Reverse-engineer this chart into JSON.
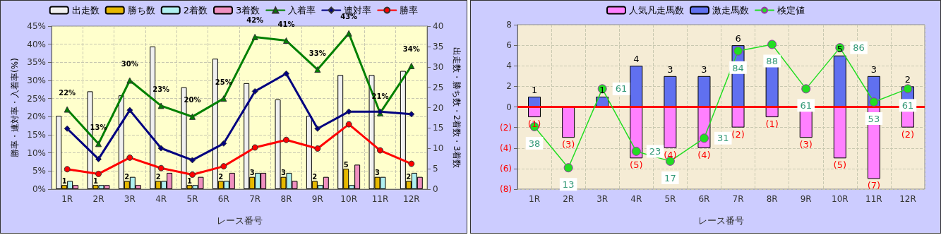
{
  "chart_data": [
    {
      "type": "bar",
      "xlabel": "レース番号",
      "ylabel": "勝率・連対率・入着率(%)",
      "y2label": "出走数・勝ち数・2着数・3着数",
      "categories": [
        "1R",
        "2R",
        "3R",
        "4R",
        "5R",
        "6R",
        "7R",
        "8R",
        "9R",
        "10R",
        "11R",
        "12R"
      ],
      "ylim": [
        0,
        45
      ],
      "yticks": [
        {
          "value": 0,
          "label": "0%"
        },
        {
          "value": 5,
          "label": "5%"
        },
        {
          "value": 10,
          "label": "10%"
        },
        {
          "value": 15,
          "label": "15%"
        },
        {
          "value": 20,
          "label": "20%"
        },
        {
          "value": 25,
          "label": "25%"
        },
        {
          "value": 30,
          "label": "30%"
        },
        {
          "value": 35,
          "label": "35%"
        },
        {
          "value": 40,
          "label": "40%"
        },
        {
          "value": 45,
          "label": "45%"
        }
      ],
      "y2lim": [
        0,
        40
      ],
      "y2ticks": [
        0,
        5,
        10,
        15,
        20,
        25,
        30,
        35,
        40
      ],
      "grid": true,
      "legend": "top",
      "series": [
        {
          "name": "出走数",
          "color": "#f0f0f0",
          "axis": "y2",
          "values": [
            18,
            24,
            23,
            35,
            25,
            32,
            26,
            22,
            18,
            28,
            28,
            29
          ]
        },
        {
          "name": "勝ち数",
          "color": "#e6b800",
          "axis": "y2",
          "values": [
            1,
            1,
            2,
            2,
            1,
            2,
            3,
            3,
            2,
            5,
            3,
            2
          ],
          "value_labels": [
            "1",
            "1",
            "2",
            "2",
            "1",
            "2",
            "3",
            "3",
            "2",
            "5",
            "3",
            "2"
          ]
        },
        {
          "name": "2着数",
          "color": "#b0f0f0",
          "axis": "y2",
          "values": [
            2,
            1,
            3,
            2,
            1,
            2,
            4,
            4,
            1,
            1,
            3,
            4
          ]
        },
        {
          "name": "3着数",
          "color": "#f090c0",
          "axis": "y2",
          "values": [
            1,
            1,
            1,
            4,
            3,
            4,
            4,
            2,
            3,
            6,
            0,
            3
          ]
        },
        {
          "name": "入着率",
          "type": "line",
          "color": "#008000",
          "marker": "triangle",
          "values": [
            22,
            12.5,
            30,
            23,
            20,
            25,
            42,
            41,
            33,
            43,
            21,
            34
          ],
          "value_labels": [
            "22%",
            "13%",
            "30%",
            "23%",
            "20%",
            "25%",
            "42%",
            "41%",
            "33%",
            "43%",
            "21%",
            "34%"
          ]
        },
        {
          "name": "連対率",
          "type": "line",
          "color": "#000080",
          "marker": "diamond",
          "values": [
            16.7,
            8.3,
            21.8,
            11.3,
            8,
            12.6,
            27,
            31.9,
            16.7,
            21.4,
            21.4,
            20.7
          ]
        },
        {
          "name": "勝率",
          "type": "line",
          "color": "#ff0000",
          "marker": "circle",
          "values": [
            5.5,
            4.2,
            8.7,
            5.8,
            4,
            6.3,
            11.5,
            13.6,
            11.2,
            17.9,
            10.7,
            7
          ]
        }
      ]
    },
    {
      "type": "bar",
      "xlabel": "レース番号",
      "categories": [
        "1R",
        "2R",
        "3R",
        "4R",
        "5R",
        "6R",
        "7R",
        "8R",
        "9R",
        "10R",
        "11R",
        "12R"
      ],
      "ylim": [
        -8,
        8
      ],
      "yticks": [
        {
          "value": -8,
          "label": "(8)"
        },
        {
          "value": -6,
          "label": "(6)"
        },
        {
          "value": -4,
          "label": "(4)"
        },
        {
          "value": -2,
          "label": "(2)"
        },
        0,
        2,
        4,
        6,
        8
      ],
      "y2lim": [
        0,
        100
      ],
      "stacked": true,
      "grid": true,
      "legend": "top",
      "ref_lines": [
        {
          "axis": "y",
          "value": 0,
          "color": "#ff0000"
        }
      ],
      "series": [
        {
          "name": "人気凡走馬数",
          "color": "#ff80ff",
          "values": [
            -1,
            -3,
            0,
            -5,
            -4,
            -4,
            -2,
            -1,
            -3,
            -5,
            -7,
            -2
          ],
          "value_labels": [
            "(1)",
            "(3)",
            null,
            "(5)",
            "(4)",
            "(4)",
            "(2)",
            "(1)",
            "(3)",
            "(5)",
            "(7)",
            "(2)"
          ]
        },
        {
          "name": "激走馬数",
          "color": "#6070f0",
          "values": [
            1,
            0,
            1,
            4,
            3,
            3,
            6,
            4,
            0,
            5,
            3,
            2
          ],
          "value_labels": [
            "1",
            null,
            "1",
            "4",
            "3",
            "3",
            "6",
            null,
            null,
            "5",
            "3",
            "2"
          ]
        },
        {
          "name": "検定値",
          "type": "line",
          "color": "#22dd22",
          "marker": "circle",
          "axis": "y2",
          "values": [
            38,
            13,
            61,
            23,
            17,
            31,
            84,
            88,
            61,
            86,
            53,
            61
          ],
          "value_labels": [
            "38",
            "13",
            "61",
            "23",
            "17",
            "31",
            "84",
            "88",
            "61",
            "86",
            "53",
            "61"
          ]
        }
      ]
    }
  ]
}
